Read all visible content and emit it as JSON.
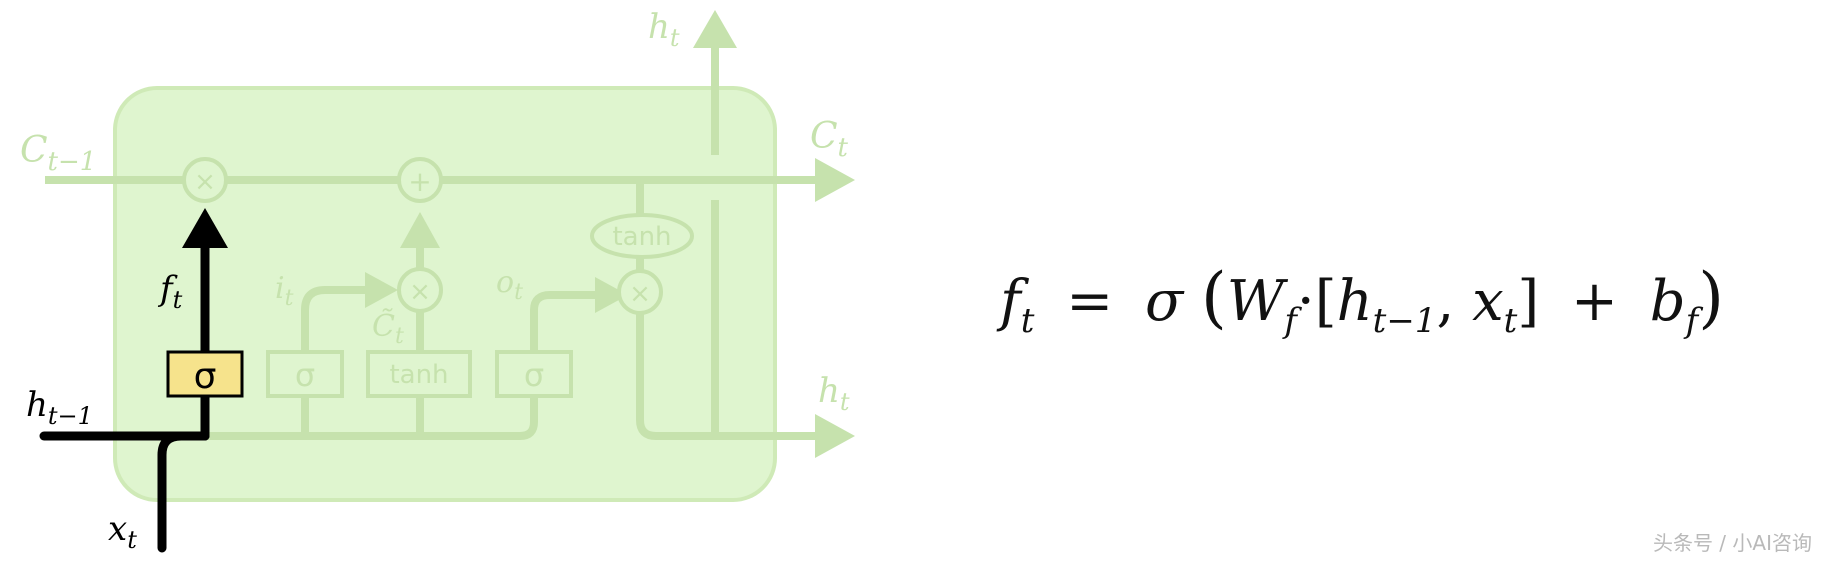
{
  "diagram": {
    "colors": {
      "cell_fill": "#dff5cf",
      "cell_border": "#cfeab7",
      "faded": "#c6e2ad",
      "active": "#000000",
      "sigma_box": "#f6e38c"
    },
    "labels": {
      "c_prev": {
        "base": "C",
        "sub": "t−1"
      },
      "c_next": {
        "base": "C",
        "sub": "t"
      },
      "h_top": {
        "base": "h",
        "sub": "t"
      },
      "h_right": {
        "base": "h",
        "sub": "t"
      },
      "h_prev": {
        "base": "h",
        "sub": "t−1"
      },
      "x_in": {
        "base": "x",
        "sub": "t"
      },
      "f_gate": {
        "base": "f",
        "sub": "t"
      },
      "i_gate": {
        "base": "i",
        "sub": "t"
      },
      "o_gate": {
        "base": "o",
        "sub": "t"
      },
      "c_tilde": {
        "base": "C̃",
        "sub": "t"
      }
    },
    "operators": {
      "multiply": "×",
      "add": "+"
    },
    "boxes": {
      "forget_sigma": "σ",
      "input_sigma": "σ",
      "candidate_tanh": "tanh",
      "output_sigma": "σ",
      "cell_tanh": "tanh"
    }
  },
  "equation": {
    "lhs": "f",
    "lhs_sub": "t",
    "equals": "=",
    "sigma": "σ",
    "open_paren": "(",
    "weight": "W",
    "weight_sub": "f",
    "dot": "·",
    "open_bracket": "[",
    "h": "h",
    "h_sub": "t−1",
    "comma": ",",
    "x": "x",
    "x_sub": "t",
    "close_bracket": "]",
    "plus": "+",
    "bias": "b",
    "bias_sub": "f",
    "close_paren": ")"
  },
  "watermark": "头条号 / 小AI咨询"
}
